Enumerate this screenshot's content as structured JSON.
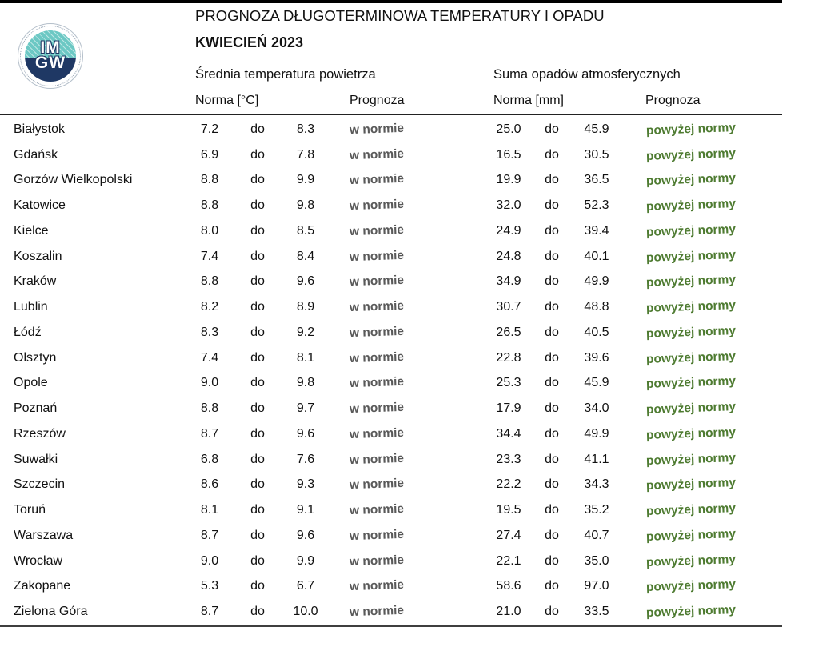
{
  "logo": {
    "line1": "IM",
    "line2": "GW"
  },
  "header": {
    "title": "PROGNOZA DŁUGOTERMINOWA TEMPERATURY I OPADU",
    "subtitle": "KWIECIEŃ 2023"
  },
  "table": {
    "group_headers": {
      "temperature": "Średnia temperatura powietrza",
      "precipitation": "Suma opadów atmosferycznych"
    },
    "column_headers": {
      "temp_norma": "Norma [°C]",
      "temp_prognoza": "Prognoza",
      "precip_norma": "Norma [mm]",
      "precip_prognoza": "Prognoza"
    },
    "range_separator": "do",
    "rows": [
      {
        "city": "Białystok",
        "temp_low": "7.2",
        "temp_high": "8.3",
        "temp_forecast": "w normie",
        "precip_low": "25.0",
        "precip_high": "45.9",
        "precip_forecast": "powyżej normy"
      },
      {
        "city": "Gdańsk",
        "temp_low": "6.9",
        "temp_high": "7.8",
        "temp_forecast": "w normie",
        "precip_low": "16.5",
        "precip_high": "30.5",
        "precip_forecast": "powyżej normy"
      },
      {
        "city": "Gorzów Wielkopolski",
        "temp_low": "8.8",
        "temp_high": "9.9",
        "temp_forecast": "w normie",
        "precip_low": "19.9",
        "precip_high": "36.5",
        "precip_forecast": "powyżej normy"
      },
      {
        "city": "Katowice",
        "temp_low": "8.8",
        "temp_high": "9.8",
        "temp_forecast": "w normie",
        "precip_low": "32.0",
        "precip_high": "52.3",
        "precip_forecast": "powyżej normy"
      },
      {
        "city": "Kielce",
        "temp_low": "8.0",
        "temp_high": "8.5",
        "temp_forecast": "w normie",
        "precip_low": "24.9",
        "precip_high": "39.4",
        "precip_forecast": "powyżej normy"
      },
      {
        "city": "Koszalin",
        "temp_low": "7.4",
        "temp_high": "8.4",
        "temp_forecast": "w normie",
        "precip_low": "24.8",
        "precip_high": "40.1",
        "precip_forecast": "powyżej normy"
      },
      {
        "city": "Kraków",
        "temp_low": "8.8",
        "temp_high": "9.6",
        "temp_forecast": "w normie",
        "precip_low": "34.9",
        "precip_high": "49.9",
        "precip_forecast": "powyżej normy"
      },
      {
        "city": "Lublin",
        "temp_low": "8.2",
        "temp_high": "8.9",
        "temp_forecast": "w normie",
        "precip_low": "30.7",
        "precip_high": "48.8",
        "precip_forecast": "powyżej normy"
      },
      {
        "city": "Łódź",
        "temp_low": "8.3",
        "temp_high": "9.2",
        "temp_forecast": "w normie",
        "precip_low": "26.5",
        "precip_high": "40.5",
        "precip_forecast": "powyżej normy"
      },
      {
        "city": "Olsztyn",
        "temp_low": "7.4",
        "temp_high": "8.1",
        "temp_forecast": "w normie",
        "precip_low": "22.8",
        "precip_high": "39.6",
        "precip_forecast": "powyżej normy"
      },
      {
        "city": "Opole",
        "temp_low": "9.0",
        "temp_high": "9.8",
        "temp_forecast": "w normie",
        "precip_low": "25.3",
        "precip_high": "45.9",
        "precip_forecast": "powyżej normy"
      },
      {
        "city": "Poznań",
        "temp_low": "8.8",
        "temp_high": "9.7",
        "temp_forecast": "w normie",
        "precip_low": "17.9",
        "precip_high": "34.0",
        "precip_forecast": "powyżej normy"
      },
      {
        "city": "Rzeszów",
        "temp_low": "8.7",
        "temp_high": "9.6",
        "temp_forecast": "w normie",
        "precip_low": "34.4",
        "precip_high": "49.9",
        "precip_forecast": "powyżej normy"
      },
      {
        "city": "Suwałki",
        "temp_low": "6.8",
        "temp_high": "7.6",
        "temp_forecast": "w normie",
        "precip_low": "23.3",
        "precip_high": "41.1",
        "precip_forecast": "powyżej normy"
      },
      {
        "city": "Szczecin",
        "temp_low": "8.6",
        "temp_high": "9.3",
        "temp_forecast": "w normie",
        "precip_low": "22.2",
        "precip_high": "34.3",
        "precip_forecast": "powyżej normy"
      },
      {
        "city": "Toruń",
        "temp_low": "8.1",
        "temp_high": "9.1",
        "temp_forecast": "w normie",
        "precip_low": "19.5",
        "precip_high": "35.2",
        "precip_forecast": "powyżej normy"
      },
      {
        "city": "Warszawa",
        "temp_low": "8.7",
        "temp_high": "9.6",
        "temp_forecast": "w normie",
        "precip_low": "27.4",
        "precip_high": "40.7",
        "precip_forecast": "powyżej normy"
      },
      {
        "city": "Wrocław",
        "temp_low": "9.0",
        "temp_high": "9.9",
        "temp_forecast": "w normie",
        "precip_low": "22.1",
        "precip_high": "35.0",
        "precip_forecast": "powyżej normy"
      },
      {
        "city": "Zakopane",
        "temp_low": "5.3",
        "temp_high": "6.7",
        "temp_forecast": "w normie",
        "precip_low": "58.6",
        "precip_high": "97.0",
        "precip_forecast": "powyżej normy"
      },
      {
        "city": "Zielona Góra",
        "temp_low": "8.7",
        "temp_high": "10.0",
        "temp_forecast": "w normie",
        "precip_low": "21.0",
        "precip_high": "33.5",
        "precip_forecast": "powyżej normy"
      }
    ]
  },
  "colors": {
    "forecast_temp_gray": "#595959",
    "forecast_precip_green": "#4e7b31",
    "logo_teal": "#6cc8c4",
    "logo_navy": "#1f3864"
  }
}
